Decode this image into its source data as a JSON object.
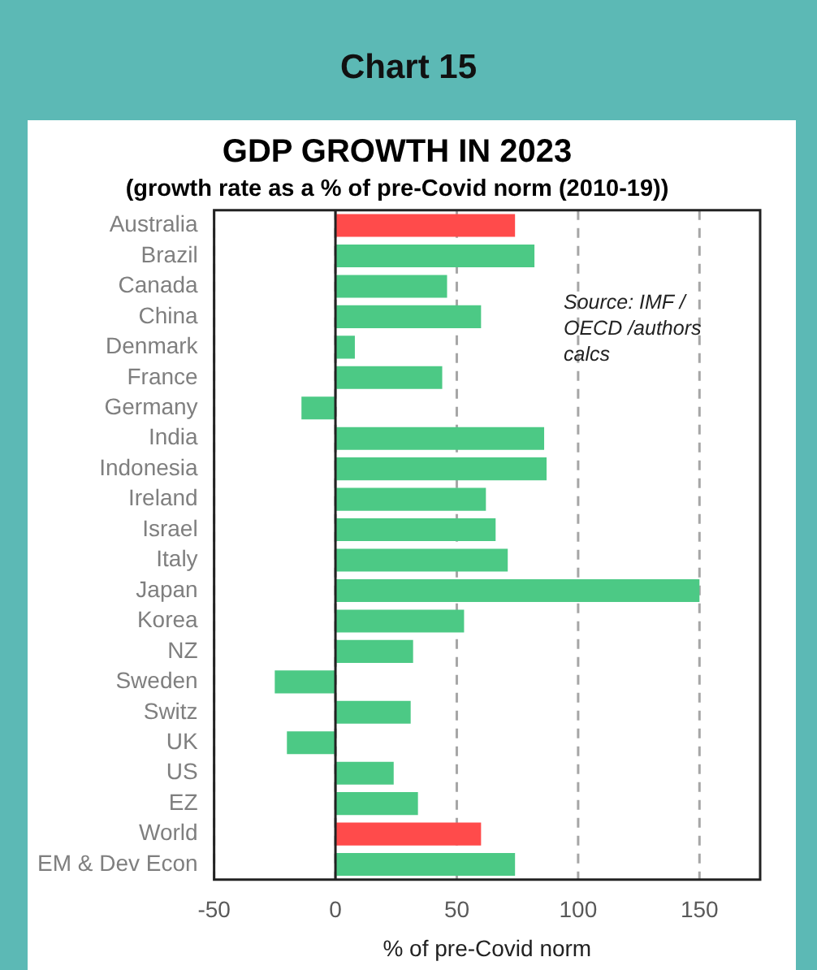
{
  "chart_data": {
    "type": "bar",
    "orientation": "horizontal",
    "title": "GDP GROWTH IN 2023",
    "subtitle": "(growth rate as a % of pre-Covid norm (2010-19))",
    "xlabel": "% of pre-Covid norm",
    "categories": [
      "Australia",
      "Brazil",
      "Canada",
      "China",
      "Denmark",
      "France",
      "Germany",
      "India",
      "Indonesia",
      "Ireland",
      "Israel",
      "Italy",
      "Japan",
      "Korea",
      "NZ",
      "Sweden",
      "Switz",
      "UK",
      "US",
      "EZ",
      "World",
      "EM & Dev Econ"
    ],
    "values": [
      74,
      82,
      46,
      60,
      8,
      44,
      -14,
      86,
      87,
      62,
      66,
      71,
      150,
      53,
      32,
      -25,
      31,
      -20,
      24,
      34,
      60,
      74
    ],
    "colors": [
      "#ff4b4b",
      "#4cc985",
      "#4cc985",
      "#4cc985",
      "#4cc985",
      "#4cc985",
      "#4cc985",
      "#4cc985",
      "#4cc985",
      "#4cc985",
      "#4cc985",
      "#4cc985",
      "#4cc985",
      "#4cc985",
      "#4cc985",
      "#4cc985",
      "#4cc985",
      "#4cc985",
      "#4cc985",
      "#4cc985",
      "#ff4b4b",
      "#4cc985"
    ],
    "xlim": [
      -50,
      175
    ],
    "xticks": [
      -50,
      0,
      50,
      100,
      150
    ],
    "grid": "x",
    "legend": false,
    "annotations": [
      "Chart 15",
      "Source: IMF / OECD /authors calcs"
    ]
  }
}
